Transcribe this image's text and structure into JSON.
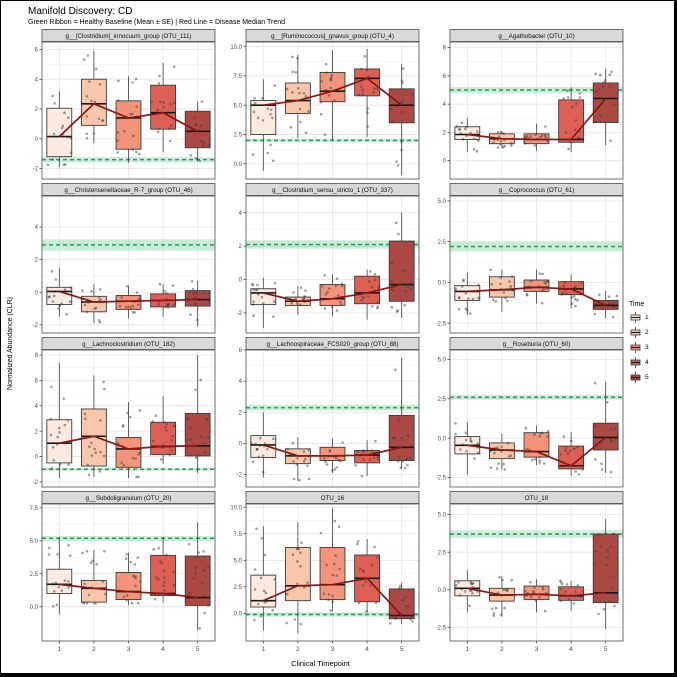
{
  "header": {
    "title": "Manifold Discovery: CD",
    "subtitle": "Green Ribbon = Healthy Baseline (Mean ± SE) | Red Line = Disease Median Trend"
  },
  "axes": {
    "x_label": "Clinical Timepoint",
    "y_label": "Normalized Abundance (CLR)",
    "x_ticks": [
      "1",
      "2",
      "3",
      "4",
      "5"
    ]
  },
  "legend": {
    "title": "Time",
    "items": [
      {
        "label": "1",
        "fill": "#FBEADF"
      },
      {
        "label": "2",
        "fill": "#F8C6AB"
      },
      {
        "label": "3",
        "fill": "#F29479"
      },
      {
        "label": "4",
        "fill": "#DE6054"
      },
      {
        "label": "5",
        "fill": "#AC4843"
      }
    ]
  },
  "style": {
    "strip_bg": "#D9D9D9",
    "strip_border": "#4d4d4d",
    "panel_border": "#4d4d4d",
    "grid_major": "#E4E4E4",
    "grid_minor": "#F2F2F2",
    "box_stroke": "#3c3c3c",
    "median_color": "#1a1a1a",
    "point_color": "#404040",
    "trend_color": "#8B1616",
    "baseline_color": "#2C9C57",
    "ribbon_color": "#8FD4AC"
  },
  "chart_data": {
    "type": "boxplot-facets",
    "facet_layout": [
      3,
      4
    ],
    "x_categories": [
      "1",
      "2",
      "3",
      "4",
      "5"
    ],
    "points_per_box": 15,
    "box_fills": [
      "#FBEADF",
      "#F8C6AB",
      "#F29479",
      "#DE6054",
      "#AC4843"
    ],
    "facets": [
      {
        "title": "g__[Clostridium]_innocuum_group (OTU_111)",
        "ylim": [
          -2.7,
          6.5
        ],
        "yticks": [
          -2,
          0,
          2,
          4,
          6
        ],
        "ytick_labels": [
          "-2",
          "0",
          "2",
          "4",
          "6"
        ],
        "healthy_mean": -1.4,
        "healthy_se": 0.18,
        "boxes": [
          {
            "lo": -1.9,
            "q1": -1.2,
            "med": 0.15,
            "q3": 2.05,
            "hi": 3.2
          },
          {
            "lo": -0.3,
            "q1": 0.9,
            "med": 2.35,
            "q3": 4.0,
            "hi": 5.9
          },
          {
            "lo": -1.6,
            "q1": -0.7,
            "med": 1.4,
            "q3": 2.55,
            "hi": 4.2
          },
          {
            "lo": -0.9,
            "q1": 0.65,
            "med": 1.75,
            "q3": 3.6,
            "hi": 5.1
          },
          {
            "lo": -1.5,
            "q1": -0.6,
            "med": 0.5,
            "q3": 1.85,
            "hi": 2.5
          }
        ],
        "trend": [
          0.15,
          2.35,
          1.4,
          1.75,
          0.5
        ]
      },
      {
        "title": "g__[Ruminococcus]_gnavus_group (OTU_4)",
        "ylim": [
          -1.3,
          10.4
        ],
        "yticks": [
          0,
          2.5,
          5,
          7.5,
          10
        ],
        "ytick_labels": [
          "0.0",
          "2.5",
          "5.0",
          "7.5",
          "10.0"
        ],
        "healthy_mean": 2.0,
        "healthy_se": 0.15,
        "boxes": [
          {
            "lo": -0.6,
            "q1": 2.5,
            "med": 5.0,
            "q3": 5.4,
            "hi": 7.2
          },
          {
            "lo": 2.2,
            "q1": 4.3,
            "med": 5.4,
            "q3": 6.9,
            "hi": 9.3
          },
          {
            "lo": 2.0,
            "q1": 5.3,
            "med": 6.2,
            "q3": 7.8,
            "hi": 9.7
          },
          {
            "lo": 2.3,
            "q1": 5.8,
            "med": 7.3,
            "q3": 8.1,
            "hi": 9.8
          },
          {
            "lo": -1.0,
            "q1": 3.5,
            "med": 5.0,
            "q3": 6.4,
            "hi": 8.5
          }
        ],
        "trend": [
          5.0,
          5.4,
          6.2,
          7.3,
          5.0
        ]
      },
      {
        "title": "g__Agathobacter (OTU_10)",
        "ylim": [
          -1.3,
          8.4
        ],
        "yticks": [
          0,
          2,
          4,
          6,
          8
        ],
        "ytick_labels": [
          "0",
          "2",
          "4",
          "6",
          "8"
        ],
        "healthy_mean": 5.0,
        "healthy_se": 0.22,
        "boxes": [
          {
            "lo": 0.6,
            "q1": 1.5,
            "med": 1.85,
            "q3": 2.4,
            "hi": 3.0
          },
          {
            "lo": 0.9,
            "q1": 1.2,
            "med": 1.55,
            "q3": 1.9,
            "hi": 2.1
          },
          {
            "lo": 0.7,
            "q1": 1.2,
            "med": 1.5,
            "q3": 1.9,
            "hi": 2.6
          },
          {
            "lo": 0.6,
            "q1": 1.3,
            "med": 1.5,
            "q3": 4.3,
            "hi": 5.2
          },
          {
            "lo": 1.1,
            "q1": 2.7,
            "med": 4.4,
            "q3": 5.5,
            "hi": 6.5
          }
        ],
        "trend": [
          1.85,
          1.55,
          1.5,
          1.5,
          4.4
        ]
      },
      {
        "title": "g__Christensenellaceae_R-7_group (OTU_46)",
        "ylim": [
          -2.5,
          5.9
        ],
        "yticks": [
          -2,
          0,
          2,
          4
        ],
        "ytick_labels": [
          "-2",
          "0",
          "2",
          "4"
        ],
        "healthy_mean": 2.9,
        "healthy_se": 0.35,
        "boxes": [
          {
            "lo": -1.5,
            "q1": -0.75,
            "med": 0.05,
            "q3": 0.3,
            "hi": 1.5
          },
          {
            "lo": -1.9,
            "q1": -1.2,
            "med": -0.6,
            "q3": -0.25,
            "hi": 0.5
          },
          {
            "lo": -1.6,
            "q1": -1.05,
            "med": -0.55,
            "q3": -0.2,
            "hi": 0.4
          },
          {
            "lo": -1.5,
            "q1": -0.9,
            "med": -0.5,
            "q3": -0.1,
            "hi": 0.5
          },
          {
            "lo": -2.1,
            "q1": -0.85,
            "med": -0.45,
            "q3": 0.1,
            "hi": 0.7
          }
        ],
        "trend": [
          0.05,
          -0.6,
          -0.55,
          -0.5,
          -0.45
        ]
      },
      {
        "title": "g__Clostridium_sensu_stricto_1 (OTU_337)",
        "ylim": [
          -3.2,
          5.0
        ],
        "yticks": [
          -2,
          0,
          2,
          4
        ],
        "ytick_labels": [
          "-2",
          "0",
          "2",
          "4"
        ],
        "healthy_mean": 2.1,
        "healthy_se": 0.25,
        "boxes": [
          {
            "lo": -2.9,
            "q1": -1.5,
            "med": -0.8,
            "q3": -0.55,
            "hi": 0.1
          },
          {
            "lo": -2.1,
            "q1": -1.55,
            "med": -1.3,
            "q3": -1.05,
            "hi": -0.4
          },
          {
            "lo": -2.2,
            "q1": -1.55,
            "med": -1.15,
            "q3": -0.3,
            "hi": 0.3
          },
          {
            "lo": -2.4,
            "q1": -1.45,
            "med": -0.8,
            "q3": 0.2,
            "hi": 0.6
          },
          {
            "lo": -2.3,
            "q1": -1.3,
            "med": -0.3,
            "q3": 2.3,
            "hi": 4.0
          }
        ],
        "trend": [
          -0.8,
          -1.3,
          -1.15,
          -0.8,
          -0.3
        ]
      },
      {
        "title": "g__Coprococcus (OTU_61)",
        "ylim": [
          -3.1,
          5.3
        ],
        "yticks": [
          -2.5,
          0,
          2.5,
          5
        ],
        "ytick_labels": [
          "-2.5",
          "0.0",
          "2.5",
          "5.0"
        ],
        "healthy_mean": 2.2,
        "healthy_se": 0.28,
        "boxes": [
          {
            "lo": -2.0,
            "q1": -1.1,
            "med": -0.55,
            "q3": -0.2,
            "hi": 0.6
          },
          {
            "lo": -1.8,
            "q1": -0.9,
            "med": -0.45,
            "q3": 0.35,
            "hi": 0.8
          },
          {
            "lo": -1.3,
            "q1": -0.55,
            "med": -0.3,
            "q3": 0.15,
            "hi": 0.8
          },
          {
            "lo": -1.6,
            "q1": -0.75,
            "med": -0.4,
            "q3": 0.05,
            "hi": 0.5
          },
          {
            "lo": -2.2,
            "q1": -1.65,
            "med": -1.4,
            "q3": -1.1,
            "hi": -0.5
          }
        ],
        "trend": [
          -0.55,
          -0.45,
          -0.3,
          -0.4,
          -1.4
        ]
      },
      {
        "title": "g__Lachnoclostridium (OTU_182)",
        "ylim": [
          -2.4,
          8.4
        ],
        "yticks": [
          -2,
          0,
          2,
          4,
          6,
          8
        ],
        "ytick_labels": [
          "-2",
          "0",
          "2",
          "4",
          "6",
          "8"
        ],
        "healthy_mean": -1.0,
        "healthy_se": 0.12,
        "boxes": [
          {
            "lo": -1.7,
            "q1": -0.5,
            "med": 1.05,
            "q3": 2.9,
            "hi": 7.4
          },
          {
            "lo": -1.6,
            "q1": -0.75,
            "med": 1.6,
            "q3": 3.75,
            "hi": 6.4
          },
          {
            "lo": -1.7,
            "q1": -0.85,
            "med": 0.6,
            "q3": 1.5,
            "hi": 4.3
          },
          {
            "lo": -0.6,
            "q1": 0.15,
            "med": 0.8,
            "q3": 2.7,
            "hi": 4.8
          },
          {
            "lo": -1.3,
            "q1": 0.05,
            "med": 0.85,
            "q3": 3.4,
            "hi": 8.0
          }
        ],
        "trend": [
          1.05,
          1.6,
          0.6,
          0.8,
          0.85
        ]
      },
      {
        "title": "g__Lachnospiraceae_FCS020_group (OTU_88)",
        "ylim": [
          -2.8,
          6.0
        ],
        "yticks": [
          -2,
          0,
          2,
          4,
          6
        ],
        "ytick_labels": [
          "-2",
          "0",
          "2",
          "4",
          "6"
        ],
        "healthy_mean": 2.3,
        "healthy_se": 0.18,
        "boxes": [
          {
            "lo": -2.2,
            "q1": -0.9,
            "med": -0.1,
            "q3": 0.5,
            "hi": 2.0
          },
          {
            "lo": -2.4,
            "q1": -1.3,
            "med": -0.8,
            "q3": -0.35,
            "hi": 0.4
          },
          {
            "lo": -1.9,
            "q1": -1.1,
            "med": -0.8,
            "q3": -0.25,
            "hi": 0.3
          },
          {
            "lo": -2.1,
            "q1": -1.25,
            "med": -0.75,
            "q3": -0.45,
            "hi": 0.2
          },
          {
            "lo": -1.6,
            "q1": -1.1,
            "med": -0.25,
            "q3": 1.8,
            "hi": 5.5
          }
        ],
        "trend": [
          -0.1,
          -0.8,
          -0.8,
          -0.75,
          -0.25
        ]
      },
      {
        "title": "g__Roseburia (OTU_60)",
        "ylim": [
          -3.1,
          5.6
        ],
        "yticks": [
          -2.5,
          0,
          2.5,
          5
        ],
        "ytick_labels": [
          "-2.5",
          "0.0",
          "2.5",
          "5.0"
        ],
        "healthy_mean": 2.6,
        "healthy_se": 0.15,
        "boxes": [
          {
            "lo": -2.3,
            "q1": -1.0,
            "med": -0.45,
            "q3": 0.1,
            "hi": 1.0
          },
          {
            "lo": -2.0,
            "q1": -1.3,
            "med": -0.75,
            "q3": -0.3,
            "hi": 0.3
          },
          {
            "lo": -1.7,
            "q1": -1.2,
            "med": -0.85,
            "q3": 0.35,
            "hi": 0.8
          },
          {
            "lo": -2.4,
            "q1": -1.95,
            "med": -1.75,
            "q3": -0.5,
            "hi": 0.4
          },
          {
            "lo": -2.2,
            "q1": -0.75,
            "med": 0.05,
            "q3": 0.95,
            "hi": 3.6
          }
        ],
        "trend": [
          -0.45,
          -0.75,
          -0.85,
          -1.75,
          0.05
        ]
      },
      {
        "title": "g__Subdoligranulum (OTU_20)",
        "ylim": [
          -2.6,
          7.8
        ],
        "yticks": [
          0,
          2.5,
          5,
          7.5
        ],
        "ytick_labels": [
          "0.0",
          "2.5",
          "5.0",
          "7.5"
        ],
        "healthy_mean": 5.2,
        "healthy_se": 0.18,
        "boxes": [
          {
            "lo": -0.6,
            "q1": 1.0,
            "med": 1.7,
            "q3": 2.85,
            "hi": 5.3
          },
          {
            "lo": 0.2,
            "q1": 0.35,
            "med": 1.4,
            "q3": 2.0,
            "hi": 4.3
          },
          {
            "lo": 0.1,
            "q1": 0.55,
            "med": 1.15,
            "q3": 2.6,
            "hi": 4.1
          },
          {
            "lo": 0.3,
            "q1": 0.85,
            "med": 1.0,
            "q3": 3.9,
            "hi": 5.3
          },
          {
            "lo": -1.8,
            "q1": 0.1,
            "med": 0.7,
            "q3": 3.85,
            "hi": 6.4
          }
        ],
        "trend": [
          1.7,
          1.4,
          1.15,
          1.0,
          0.7
        ]
      },
      {
        "title": "OTU_16",
        "ylim": [
          -2.6,
          10.3
        ],
        "yticks": [
          0,
          2.5,
          5,
          7.5,
          10
        ],
        "ytick_labels": [
          "0.0",
          "2.5",
          "5.0",
          "7.5",
          "10.0"
        ],
        "healthy_mean": -0.1,
        "healthy_se": 0.2,
        "boxes": [
          {
            "lo": -1.6,
            "q1": 0.6,
            "med": 1.2,
            "q3": 3.6,
            "hi": 8.2
          },
          {
            "lo": -1.9,
            "q1": 1.2,
            "med": 2.6,
            "q3": 6.2,
            "hi": 8.6
          },
          {
            "lo": 0.2,
            "q1": 1.3,
            "med": 2.7,
            "q3": 6.2,
            "hi": 9.9
          },
          {
            "lo": 0.1,
            "q1": 1.1,
            "med": 3.3,
            "q3": 5.5,
            "hi": 7.0
          },
          {
            "lo": -1.0,
            "q1": -0.5,
            "med": -0.2,
            "q3": 2.3,
            "hi": 2.9
          }
        ],
        "trend": [
          1.2,
          2.6,
          2.7,
          3.3,
          -0.2
        ]
      },
      {
        "title": "OTU_18",
        "ylim": [
          -3.4,
          5.7
        ],
        "yticks": [
          -2.5,
          0,
          2.5,
          5
        ],
        "ytick_labels": [
          "-2.5",
          "0.0",
          "2.5",
          "5.0"
        ],
        "healthy_mean": 3.7,
        "healthy_se": 0.25,
        "boxes": [
          {
            "lo": -1.5,
            "q1": -0.4,
            "med": 0.1,
            "q3": 0.6,
            "hi": 1.3
          },
          {
            "lo": -1.8,
            "q1": -0.75,
            "med": -0.35,
            "q3": 0.1,
            "hi": 0.9
          },
          {
            "lo": -1.5,
            "q1": -0.65,
            "med": -0.3,
            "q3": 0.25,
            "hi": 0.7
          },
          {
            "lo": -1.4,
            "q1": -0.7,
            "med": -0.4,
            "q3": 0.2,
            "hi": 0.6
          },
          {
            "lo": -2.6,
            "q1": -0.85,
            "med": -0.2,
            "q3": 3.7,
            "hi": 4.7
          }
        ],
        "trend": [
          0.1,
          -0.35,
          -0.3,
          -0.4,
          -0.2
        ]
      }
    ]
  }
}
